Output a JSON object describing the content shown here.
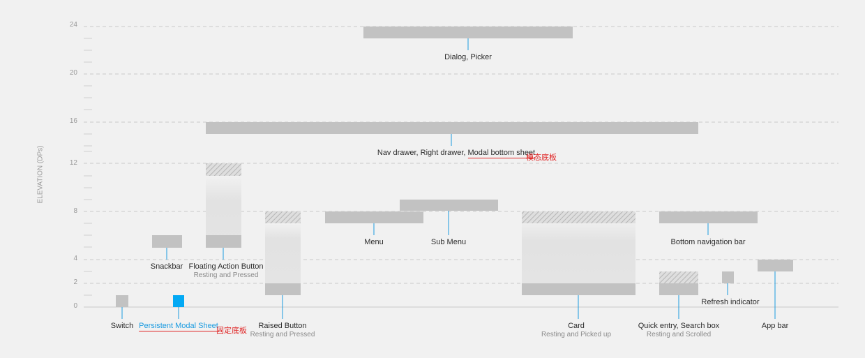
{
  "colors": {
    "bar": "#c2c2c2",
    "accent": "#03a9f4",
    "leader": "#1a9be0",
    "annotation": "#e02424",
    "grid": "#c9c9c9"
  },
  "y_axis": {
    "label": "ELEVATION (DPs)",
    "ticks": [
      "0",
      "2",
      "4",
      "8",
      "12",
      "16",
      "20",
      "24"
    ]
  },
  "components": {
    "switch": {
      "label": "Switch"
    },
    "persistent_sheet": {
      "label": "Persistent Modal Sheet",
      "annotation": "固定底板"
    },
    "snackbar": {
      "label": "Snackbar"
    },
    "fab": {
      "label": "Floating Action Button",
      "sub": "Resting and Pressed"
    },
    "raised_button": {
      "label": "Raised Button",
      "sub": "Resting and Pressed"
    },
    "menu": {
      "label": "Menu"
    },
    "sub_menu": {
      "label": "Sub Menu"
    },
    "card": {
      "label": "Card",
      "sub": "Resting and Picked up"
    },
    "quick_entry": {
      "label": "Quick entry, Search box",
      "sub": "Resting and Scrolled"
    },
    "refresh": {
      "label": "Refresh indicator"
    },
    "bottom_nav": {
      "label": "Bottom navigation bar"
    },
    "app_bar": {
      "label": "App bar"
    },
    "nav_drawer": {
      "label_plain": "Nav drawer, Right drawer, ",
      "label_underlined": "Modal bottom sheet",
      "annotation": "模态底板"
    },
    "dialog": {
      "label": "Dialog, Picker"
    }
  }
}
